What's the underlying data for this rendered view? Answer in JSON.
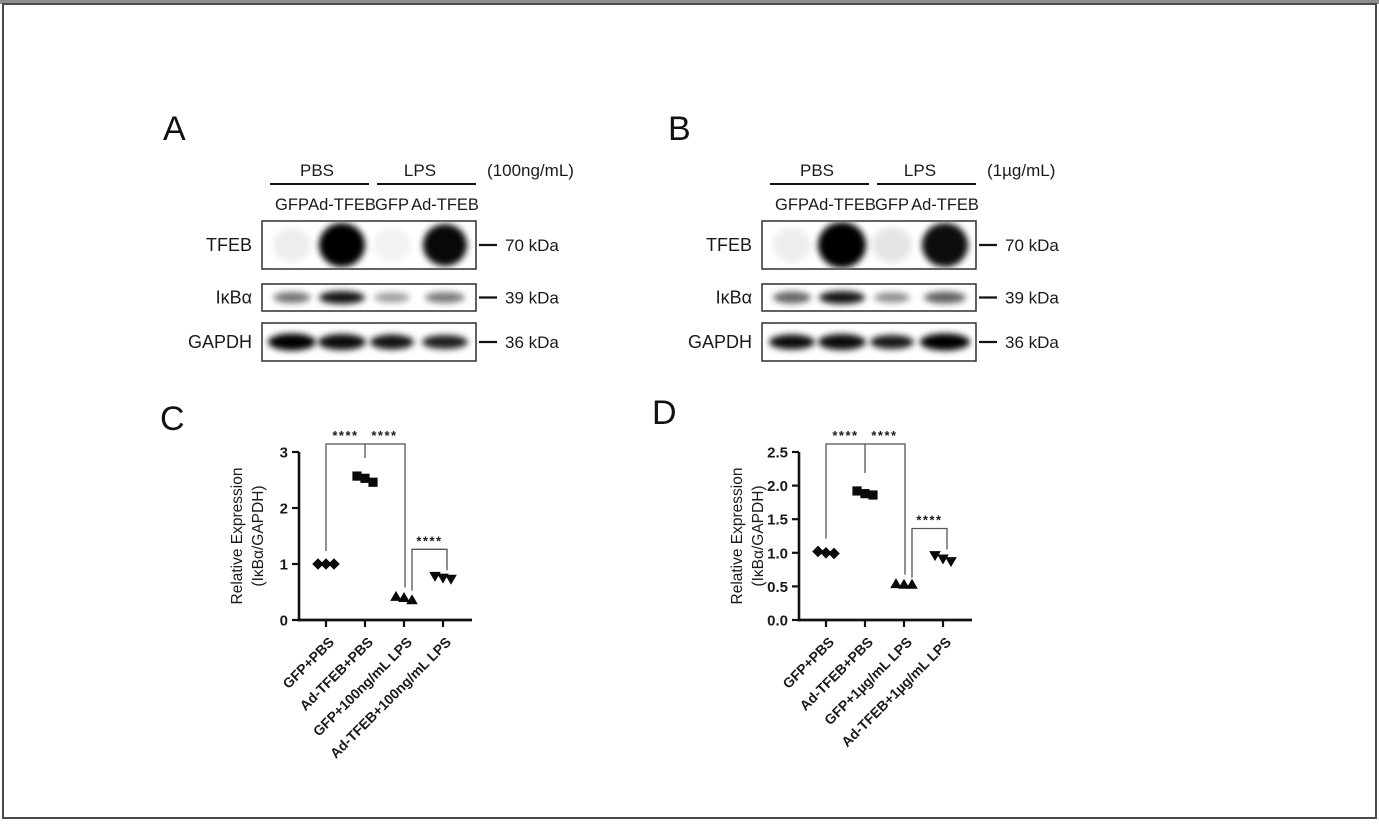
{
  "frame": {
    "border_color": "#4b4b4b",
    "top_edge_color": "#8d8d8d",
    "background": "#ffffff"
  },
  "blot_panels": [
    {
      "panel_label": "A",
      "treatment_groups": [
        "PBS",
        "LPS"
      ],
      "dose_label": "(100ng/mL)",
      "lane_labels": [
        "GFP",
        "Ad-TFEB",
        "GFP",
        "Ad-TFEB"
      ],
      "rows": [
        {
          "protein": "TFEB",
          "molecular_weight": "70 kDa",
          "bands": [
            {
              "intensity": 0.07,
              "w": 38,
              "h": 34
            },
            {
              "intensity": 1.0,
              "w": 46,
              "h": 44
            },
            {
              "intensity": 0.05,
              "w": 38,
              "h": 34
            },
            {
              "intensity": 0.97,
              "w": 44,
              "h": 42
            }
          ]
        },
        {
          "protein": "IκBα",
          "molecular_weight": "39 kDa",
          "bands": [
            {
              "intensity": 0.55,
              "w": 37,
              "h": 11
            },
            {
              "intensity": 0.92,
              "w": 46,
              "h": 13
            },
            {
              "intensity": 0.38,
              "w": 36,
              "h": 10
            },
            {
              "intensity": 0.52,
              "w": 40,
              "h": 11
            }
          ]
        },
        {
          "protein": "GAPDH",
          "molecular_weight": "36 kDa",
          "bands": [
            {
              "intensity": 1.0,
              "w": 48,
              "h": 17
            },
            {
              "intensity": 0.95,
              "w": 48,
              "h": 16
            },
            {
              "intensity": 0.92,
              "w": 44,
              "h": 15
            },
            {
              "intensity": 0.88,
              "w": 46,
              "h": 14
            }
          ]
        }
      ]
    },
    {
      "panel_label": "B",
      "treatment_groups": [
        "PBS",
        "LPS"
      ],
      "dose_label": "(1µg/mL)",
      "lane_labels": [
        "GFP",
        "Ad-TFEB",
        "GFP",
        "Ad-TFEB"
      ],
      "rows": [
        {
          "protein": "TFEB",
          "molecular_weight": "70 kDa",
          "bands": [
            {
              "intensity": 0.07,
              "w": 38,
              "h": 34
            },
            {
              "intensity": 1.0,
              "w": 48,
              "h": 46
            },
            {
              "intensity": 0.1,
              "w": 40,
              "h": 36
            },
            {
              "intensity": 0.95,
              "w": 46,
              "h": 44
            }
          ]
        },
        {
          "protein": "IκBα",
          "molecular_weight": "39 kDa",
          "bands": [
            {
              "intensity": 0.6,
              "w": 38,
              "h": 12
            },
            {
              "intensity": 0.92,
              "w": 46,
              "h": 13
            },
            {
              "intensity": 0.45,
              "w": 36,
              "h": 10
            },
            {
              "intensity": 0.62,
              "w": 42,
              "h": 12
            }
          ]
        },
        {
          "protein": "GAPDH",
          "molecular_weight": "36 kDa",
          "bands": [
            {
              "intensity": 0.95,
              "w": 46,
              "h": 15
            },
            {
              "intensity": 0.95,
              "w": 48,
              "h": 16
            },
            {
              "intensity": 0.9,
              "w": 44,
              "h": 14
            },
            {
              "intensity": 1.0,
              "w": 50,
              "h": 17
            }
          ]
        }
      ]
    }
  ],
  "chart_data": [
    {
      "panel_label": "C",
      "type": "scatter",
      "ylabel": [
        "Relative Expression",
        "(IκBα/GAPDH)"
      ],
      "ylim": [
        0,
        3
      ],
      "yticks": [
        "0",
        "1",
        "2",
        "3"
      ],
      "ytick_values": [
        0,
        1,
        2,
        3
      ],
      "categories": [
        "GFP+PBS",
        "Ad-TFEB+PBS",
        "GFP+100ng/mL LPS",
        "Ad-TFEB+100ng/mL LPS"
      ],
      "series": [
        {
          "name": "GFP+PBS",
          "marker": "diamond",
          "values": [
            1.0,
            1.0,
            1.0
          ]
        },
        {
          "name": "Ad-TFEB+PBS",
          "marker": "square",
          "values": [
            2.57,
            2.53,
            2.46
          ]
        },
        {
          "name": "GFP+100ng/mL LPS",
          "marker": "triangle-up",
          "values": [
            0.42,
            0.4,
            0.36
          ]
        },
        {
          "name": "Ad-TFEB+100ng/mL LPS",
          "marker": "triangle-down",
          "values": [
            0.78,
            0.75,
            0.73
          ]
        }
      ],
      "significance": [
        {
          "groups": [
            0,
            1
          ],
          "label": "****"
        },
        {
          "groups": [
            1,
            2
          ],
          "label": "****"
        },
        {
          "groups": [
            2,
            3
          ],
          "label": "****"
        }
      ],
      "legend_position": "none",
      "grid": false
    },
    {
      "panel_label": "D",
      "type": "scatter",
      "ylabel": [
        "Relative Expression",
        "(IκBα/GAPDH)"
      ],
      "ylim": [
        0,
        2.5
      ],
      "yticks": [
        "0.0",
        "0.5",
        "1.0",
        "1.5",
        "2.0",
        "2.5"
      ],
      "ytick_values": [
        0,
        0.5,
        1.0,
        1.5,
        2.0,
        2.5
      ],
      "categories": [
        "GFP+PBS",
        "Ad-TFEB+PBS",
        "GFP+1µg/mL LPS",
        "Ad-TFEB+1µg/mL LPS"
      ],
      "series": [
        {
          "name": "GFP+PBS",
          "marker": "diamond",
          "values": [
            1.02,
            1.0,
            0.99
          ]
        },
        {
          "name": "Ad-TFEB+PBS",
          "marker": "square",
          "values": [
            1.92,
            1.88,
            1.86
          ]
        },
        {
          "name": "GFP+1µg/mL LPS",
          "marker": "triangle-up",
          "values": [
            0.54,
            0.53,
            0.53
          ]
        },
        {
          "name": "Ad-TFEB+1µg/mL LPS",
          "marker": "triangle-down",
          "values": [
            0.96,
            0.91,
            0.87
          ]
        }
      ],
      "significance": [
        {
          "groups": [
            0,
            1
          ],
          "label": "****"
        },
        {
          "groups": [
            1,
            2
          ],
          "label": "****"
        },
        {
          "groups": [
            2,
            3
          ],
          "label": "****"
        }
      ],
      "legend_position": "none",
      "grid": false
    }
  ]
}
